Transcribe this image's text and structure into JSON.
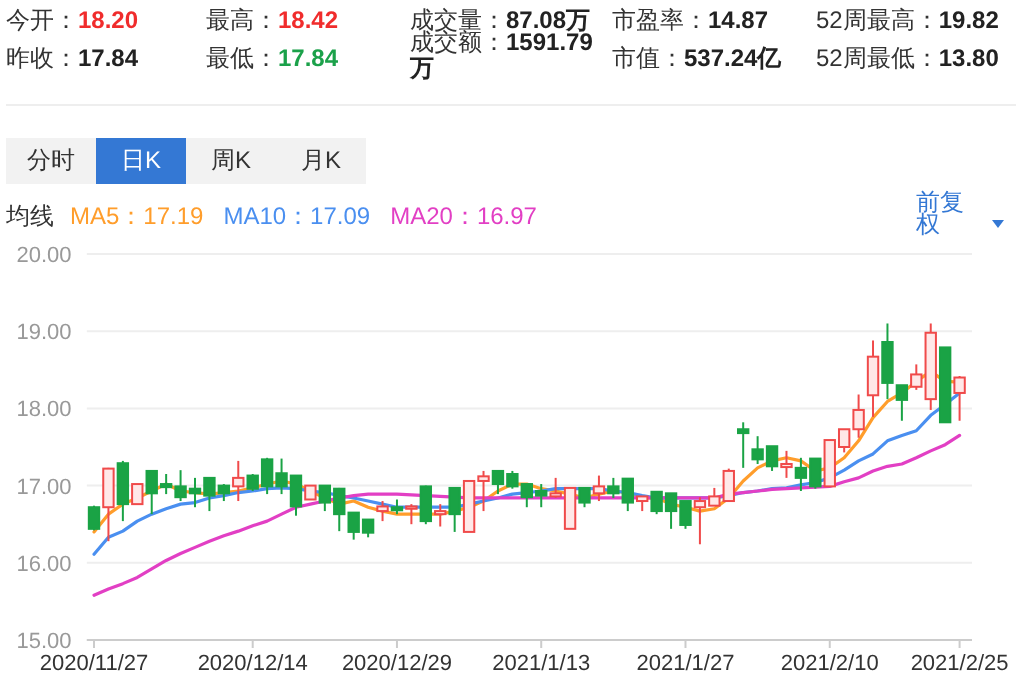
{
  "chart_data": [
    {
      "type": "other",
      "annotations": [
        "今开：18.20",
        "最高：18.42",
        "成交量：87.08万",
        "市盈率：14.87",
        "52周最高：19.82",
        "昨收：17.84",
        "最低：17.84",
        "成交额：1591.79万",
        "市值：537.24亿",
        "52周最低：13.80",
        "分时",
        "日K",
        "周K",
        "月K",
        "前复权"
      ]
    },
    {
      "type": "candlestick",
      "categories": [
        "2020/11/27",
        null,
        null,
        null,
        null,
        null,
        null,
        null,
        null,
        null,
        null,
        "2020/12/14",
        null,
        null,
        null,
        null,
        null,
        null,
        null,
        null,
        null,
        "2020/12/29",
        null,
        null,
        null,
        null,
        null,
        null,
        null,
        null,
        null,
        "2021/1/13",
        null,
        null,
        null,
        null,
        null,
        null,
        null,
        null,
        null,
        "2021/1/27",
        null,
        null,
        null,
        null,
        null,
        null,
        null,
        null,
        null,
        "2021/2/10",
        null,
        null,
        null,
        null,
        null,
        null,
        null,
        null,
        "2021/2/25"
      ],
      "ohlc": [
        [
          16.72,
          16.74,
          16.42,
          16.44
        ],
        [
          16.72,
          17.23,
          16.28,
          17.22
        ],
        [
          17.29,
          17.32,
          16.54,
          16.76
        ],
        [
          16.76,
          17.02,
          16.76,
          17.02
        ],
        [
          17.19,
          17.2,
          16.63,
          16.9
        ],
        [
          17.02,
          17.15,
          16.89,
          16.98
        ],
        [
          16.99,
          17.2,
          16.8,
          16.85
        ],
        [
          16.96,
          17.1,
          16.72,
          16.9
        ],
        [
          17.1,
          17.1,
          16.67,
          16.87
        ],
        [
          17.0,
          17.02,
          16.8,
          16.9
        ],
        [
          16.99,
          17.32,
          16.8,
          17.1
        ],
        [
          17.13,
          17.15,
          16.93,
          16.96
        ],
        [
          17.34,
          17.36,
          16.89,
          16.99
        ],
        [
          17.16,
          17.35,
          16.89,
          16.99
        ],
        [
          17.13,
          17.13,
          16.61,
          16.73
        ],
        [
          16.82,
          17.0,
          16.82,
          17.0
        ],
        [
          17.0,
          17.0,
          16.67,
          16.78
        ],
        [
          16.96,
          16.97,
          16.41,
          16.63
        ],
        [
          16.65,
          16.65,
          16.3,
          16.4
        ],
        [
          16.56,
          16.56,
          16.33,
          16.39
        ],
        [
          16.67,
          16.8,
          16.54,
          16.73
        ],
        [
          16.72,
          16.82,
          16.63,
          16.68
        ],
        [
          16.7,
          16.76,
          16.5,
          16.73
        ],
        [
          16.99,
          17.0,
          16.5,
          16.54
        ],
        [
          16.63,
          16.76,
          16.47,
          16.67
        ],
        [
          16.97,
          16.97,
          16.4,
          16.63
        ],
        [
          16.4,
          17.06,
          16.4,
          17.06
        ],
        [
          17.06,
          17.19,
          16.67,
          17.12
        ],
        [
          17.19,
          17.19,
          16.89,
          17.02
        ],
        [
          17.15,
          17.19,
          16.96,
          16.99
        ],
        [
          17.02,
          17.02,
          16.72,
          16.85
        ],
        [
          16.93,
          17.02,
          16.72,
          16.87
        ],
        [
          16.86,
          17.1,
          16.84,
          16.9
        ],
        [
          16.44,
          16.97,
          16.44,
          16.97
        ],
        [
          16.97,
          16.97,
          16.72,
          16.78
        ],
        [
          16.9,
          17.13,
          16.8,
          16.99
        ],
        [
          16.99,
          17.1,
          16.84,
          16.9
        ],
        [
          17.09,
          17.09,
          16.67,
          16.78
        ],
        [
          16.8,
          16.86,
          16.67,
          16.86
        ],
        [
          16.92,
          16.92,
          16.63,
          16.67
        ],
        [
          16.9,
          16.9,
          16.44,
          16.67
        ],
        [
          16.8,
          16.8,
          16.44,
          16.49
        ],
        [
          16.72,
          16.85,
          16.24,
          16.8
        ],
        [
          16.74,
          16.97,
          16.74,
          16.86
        ],
        [
          16.8,
          17.22,
          16.8,
          17.19
        ],
        [
          17.73,
          17.82,
          17.23,
          17.68
        ],
        [
          17.47,
          17.64,
          17.28,
          17.34
        ],
        [
          17.51,
          17.51,
          17.19,
          17.25
        ],
        [
          17.24,
          17.45,
          17.1,
          17.28
        ],
        [
          17.23,
          17.36,
          16.93,
          17.1
        ],
        [
          17.35,
          17.35,
          16.96,
          16.99
        ],
        [
          16.99,
          17.59,
          16.99,
          17.59
        ],
        [
          17.5,
          17.73,
          17.43,
          17.73
        ],
        [
          17.73,
          18.18,
          17.62,
          17.98
        ],
        [
          18.17,
          18.88,
          17.89,
          18.67
        ],
        [
          18.86,
          19.1,
          18.12,
          18.33
        ],
        [
          18.3,
          18.3,
          17.84,
          18.11
        ],
        [
          18.28,
          18.57,
          18.24,
          18.44
        ],
        [
          18.12,
          19.1,
          17.98,
          18.98
        ],
        [
          18.79,
          18.79,
          17.82,
          17.82
        ],
        [
          18.2,
          18.42,
          17.84,
          18.4
        ]
      ],
      "series": [
        {
          "name": "MA5：17.19",
          "type": "line",
          "color": "#ff9d2b",
          "values": [
            16.4,
            16.63,
            16.76,
            16.84,
            16.93,
            17.02,
            16.93,
            16.91,
            16.89,
            16.91,
            16.93,
            16.97,
            17.02,
            17.06,
            17.02,
            16.93,
            16.84,
            16.76,
            16.8,
            16.72,
            16.67,
            16.63,
            16.63,
            16.63,
            16.63,
            16.67,
            16.72,
            16.8,
            16.93,
            17.02,
            17.02,
            16.96,
            16.93,
            16.89,
            16.84,
            16.89,
            16.93,
            16.91,
            16.84,
            16.84,
            16.76,
            16.72,
            16.67,
            16.7,
            16.84,
            17.06,
            17.23,
            17.32,
            17.36,
            17.32,
            17.19,
            17.23,
            17.36,
            17.58,
            17.88,
            18.09,
            18.2,
            18.35,
            18.48,
            18.35,
            18.34
          ]
        },
        {
          "name": "MA10：17.09",
          "type": "line",
          "color": "#4a8ff0",
          "values": [
            16.11,
            16.33,
            16.41,
            16.54,
            16.63,
            16.7,
            16.76,
            16.78,
            16.84,
            16.87,
            16.91,
            16.93,
            16.96,
            16.97,
            16.96,
            16.93,
            16.91,
            16.87,
            16.84,
            16.8,
            16.76,
            16.72,
            16.72,
            16.72,
            16.72,
            16.72,
            16.76,
            16.8,
            16.84,
            16.89,
            16.91,
            16.93,
            16.96,
            16.96,
            16.96,
            16.96,
            16.93,
            16.91,
            16.87,
            16.84,
            16.84,
            16.84,
            16.84,
            16.84,
            16.87,
            16.91,
            16.93,
            16.96,
            16.97,
            17.01,
            17.04,
            17.1,
            17.2,
            17.32,
            17.41,
            17.58,
            17.65,
            17.71,
            17.91,
            18.05,
            18.2
          ]
        },
        {
          "name": "MA20：16.97",
          "type": "line",
          "color": "#e23fc4",
          "values": [
            15.58,
            15.66,
            15.73,
            15.81,
            15.92,
            16.03,
            16.12,
            16.2,
            16.28,
            16.35,
            16.41,
            16.48,
            16.54,
            16.63,
            16.72,
            16.76,
            16.8,
            16.84,
            16.87,
            16.89,
            16.89,
            16.89,
            16.88,
            16.87,
            16.86,
            16.85,
            16.84,
            16.84,
            16.84,
            16.84,
            16.84,
            16.84,
            16.84,
            16.84,
            16.84,
            16.84,
            16.84,
            16.84,
            16.84,
            16.84,
            16.84,
            16.84,
            16.84,
            16.84,
            16.89,
            16.91,
            16.93,
            16.95,
            16.96,
            16.97,
            16.98,
            16.99,
            17.05,
            17.1,
            17.19,
            17.25,
            17.28,
            17.36,
            17.45,
            17.53,
            17.65
          ]
        }
      ],
      "legend_title": "均线",
      "legend": "top left",
      "ylim": [
        15,
        20
      ],
      "yticks": [
        {
          "value": 15,
          "label": "15.00"
        },
        {
          "value": 16,
          "label": "16.00"
        },
        {
          "value": 17,
          "label": "17.00"
        },
        {
          "value": 18,
          "label": "18.00"
        },
        {
          "value": 19,
          "label": "19.00"
        },
        {
          "value": 20,
          "label": "20.00"
        }
      ],
      "grid": "y"
    }
  ]
}
